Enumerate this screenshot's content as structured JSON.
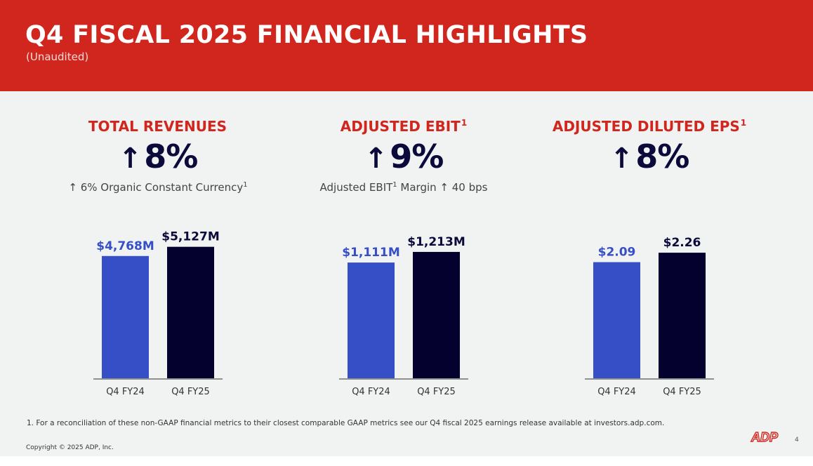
{
  "header": {
    "title": "Q4 FISCAL 2025 FINANCIAL HIGHLIGHTS",
    "subtitle": "(Unaudited)"
  },
  "kpis": [
    {
      "title": "TOTAL REVENUES",
      "footnote_ref": "",
      "arrow": "↑",
      "value": "8%",
      "sub_prefix": "↑ 6% Organic Constant Currency",
      "sub_ref": "1",
      "sub_suffix": ""
    },
    {
      "title": "ADJUSTED EBIT",
      "footnote_ref": "1",
      "arrow": "↑",
      "value": "9%",
      "sub_prefix": "Adjusted EBIT",
      "sub_ref": "1",
      "sub_suffix": " Margin ↑ 40 bps"
    },
    {
      "title": "ADJUSTED DILUTED EPS",
      "footnote_ref": "1",
      "arrow": "↑",
      "value": "8%",
      "sub_prefix": "",
      "sub_ref": "",
      "sub_suffix": ""
    }
  ],
  "chart_data": [
    {
      "type": "bar",
      "title": "TOTAL REVENUES",
      "categories": [
        "Q4 FY24",
        "Q4 FY25"
      ],
      "values": [
        4768,
        5127
      ],
      "labels": [
        "$4,768M",
        "$5,127M"
      ],
      "unit": "$M",
      "ylim": [
        0,
        5200
      ]
    },
    {
      "type": "bar",
      "title": "ADJUSTED EBIT",
      "categories": [
        "Q4 FY24",
        "Q4 FY25"
      ],
      "values": [
        1111,
        1213
      ],
      "labels": [
        "$1,111M",
        "$1,213M"
      ],
      "unit": "$M",
      "ylim": [
        0,
        1280
      ]
    },
    {
      "type": "bar",
      "title": "ADJUSTED DILUTED EPS",
      "categories": [
        "Q4 FY24",
        "Q4 FY25"
      ],
      "values": [
        2.09,
        2.26
      ],
      "labels": [
        "$2.09",
        "$2.26"
      ],
      "unit": "$",
      "ylim": [
        0,
        2.4
      ]
    }
  ],
  "colors": {
    "brand_red": "#d1261e",
    "bar_prior": "#364fc7",
    "bar_current": "#04012e",
    "label_prior": "#364fc7",
    "label_current": "#0b0a3a"
  },
  "footer": {
    "footnote": "1.  For a reconciliation of these non-GAAP financial metrics to their closest comparable GAAP metrics see our Q4 fiscal 2025 earnings release available at investors.adp.com.",
    "copyright": "Copyright © 2025 ADP, Inc.",
    "logo_text": "ADP",
    "page_number": "4"
  }
}
